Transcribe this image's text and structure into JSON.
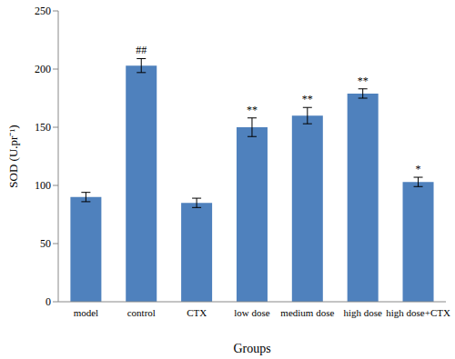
{
  "chart_data": {
    "type": "bar",
    "x_label": "Groups",
    "y_label": "SOD (U.pr⁻¹)",
    "categories": [
      "model",
      "control",
      "CTX",
      "low dose",
      "medium dose",
      "high dose",
      "high dose+CTX"
    ],
    "values": [
      90,
      203,
      85,
      150,
      160,
      179,
      103
    ],
    "errors": [
      4,
      6,
      4,
      8,
      7,
      4,
      4
    ],
    "significance": [
      null,
      "##",
      null,
      "**",
      "**",
      "**",
      "*"
    ],
    "color": "#4f81bd",
    "ylim": [
      0,
      250
    ],
    "yticks": [
      0,
      50,
      100,
      150,
      200,
      250
    ],
    "grid": false
  }
}
